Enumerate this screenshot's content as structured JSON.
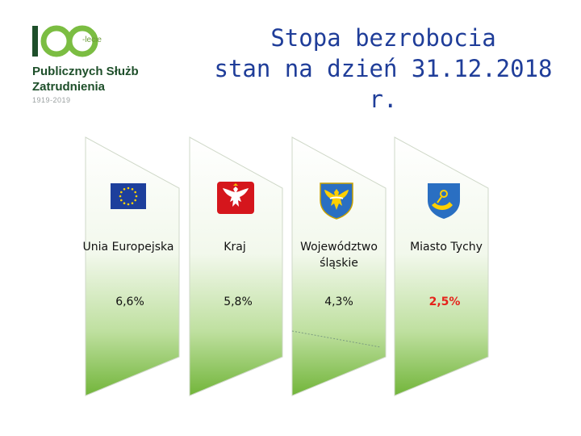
{
  "logo": {
    "number": "100",
    "suffix": "-lecie",
    "line1": "Publicznych Służb",
    "line2": "Zatrudnienia",
    "years": "1919-2019"
  },
  "title": {
    "line1": "Stopa bezrobocia",
    "line2": "stan na dzień 31.12.2018 r."
  },
  "colors": {
    "title": "#1f3d99",
    "highlight": "#e5231b",
    "panel_green": "#7cbc41",
    "logo_green": "#7bbd42",
    "logo_dark": "#1e4f2a"
  },
  "columns": [
    {
      "emblem": "eu-flag-icon",
      "label": "Unia Europejska",
      "value": "6,6%"
    },
    {
      "emblem": "poland-eagle-icon",
      "label": "Kraj",
      "value": "5,8%"
    },
    {
      "emblem": "silesia-coat-of-arms-icon",
      "label": "Województwo śląskie",
      "value": "4,3%"
    },
    {
      "emblem": "tychy-coat-of-arms-icon",
      "label": "Miasto Tychy",
      "value": "2,5%",
      "highlight": true
    }
  ]
}
